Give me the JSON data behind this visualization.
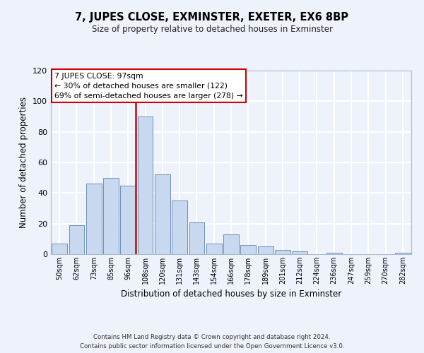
{
  "title": "7, JUPES CLOSE, EXMINSTER, EXETER, EX6 8BP",
  "subtitle": "Size of property relative to detached houses in Exminster",
  "xlabel": "Distribution of detached houses by size in Exminster",
  "ylabel": "Number of detached properties",
  "bin_labels": [
    "50sqm",
    "62sqm",
    "73sqm",
    "85sqm",
    "96sqm",
    "108sqm",
    "120sqm",
    "131sqm",
    "143sqm",
    "154sqm",
    "166sqm",
    "178sqm",
    "189sqm",
    "201sqm",
    "212sqm",
    "224sqm",
    "236sqm",
    "247sqm",
    "259sqm",
    "270sqm",
    "282sqm"
  ],
  "bar_heights": [
    7,
    19,
    46,
    50,
    45,
    90,
    52,
    35,
    21,
    7,
    13,
    6,
    5,
    3,
    2,
    0,
    1,
    0,
    0,
    0,
    1
  ],
  "bar_color": "#c8d8ee",
  "bar_edge_color": "#7090b8",
  "annotation_line1": "7 JUPES CLOSE: 97sqm",
  "annotation_line2": "← 30% of detached houses are smaller (122)",
  "annotation_line3": "69% of semi-detached houses are larger (278) →",
  "annotation_box_color": "#ffffff",
  "annotation_border_color": "#cc0000",
  "property_line_color": "#cc0000",
  "property_bin_index": 4,
  "ylim": [
    0,
    120
  ],
  "yticks": [
    0,
    20,
    40,
    60,
    80,
    100,
    120
  ],
  "footnote1": "Contains HM Land Registry data © Crown copyright and database right 2024.",
  "footnote2": "Contains public sector information licensed under the Open Government Licence v3.0.",
  "background_color": "#eef2fb",
  "grid_color": "#ffffff"
}
